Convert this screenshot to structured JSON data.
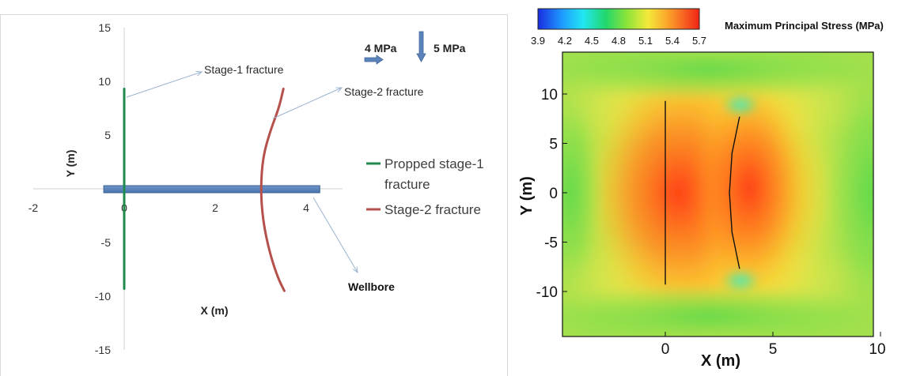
{
  "chart_data": [
    {
      "type": "line",
      "title": "",
      "xlabel": "X (m)",
      "ylabel": "Y (m)",
      "xlim": [
        -2,
        4.8
      ],
      "ylim": [
        -15,
        15
      ],
      "x_ticks": [
        "-2",
        "0",
        "2",
        "4"
      ],
      "y_ticks": [
        "15",
        "10",
        "5",
        "0",
        "-5",
        "-10",
        "-15"
      ],
      "grid": false,
      "legend": "right",
      "series": [
        {
          "name": "Propped stage-1 fracture",
          "color": "#1e8b4c",
          "points": [
            [
              0,
              9.3
            ],
            [
              0,
              -9.3
            ]
          ]
        },
        {
          "name": "Stage-2 fracture",
          "color": "#b5504c",
          "points": [
            [
              3.5,
              9.3
            ],
            [
              3.4,
              7.5
            ],
            [
              3.22,
              5.5
            ],
            [
              3.05,
              3.0
            ],
            [
              3.0,
              0.0
            ],
            [
              3.05,
              -3.0
            ],
            [
              3.2,
              -6.0
            ],
            [
              3.38,
              -8.3
            ],
            [
              3.52,
              -9.5
            ]
          ]
        }
      ],
      "wellbore": {
        "x_start": -0.45,
        "x_end": 4.3,
        "y": 0
      },
      "annotations": [
        {
          "text": "Stage-1 fracture",
          "color": "#2b2b2b"
        },
        {
          "text": "Stage-2 fracture",
          "color": "#2b2b2b"
        },
        {
          "text": "Wellbore",
          "color": "#111111",
          "bold": true
        }
      ],
      "stress_labels": [
        {
          "text": "4 MPa",
          "direction": "right"
        },
        {
          "text": "5 MPa",
          "direction": "down"
        }
      ]
    },
    {
      "type": "heatmap",
      "title": "Maximum Principal Stress (MPa)",
      "xlabel": "X (m)",
      "ylabel": "Y (m)",
      "xlim": [
        -4.9,
        10
      ],
      "ylim": [
        -14.5,
        14
      ],
      "x_ticks": [
        "0",
        "5",
        "10"
      ],
      "y_ticks": [
        "10",
        "5",
        "0",
        "-5",
        "-10"
      ],
      "colorbar": {
        "min": 3.9,
        "max": 5.7,
        "ticks": [
          "3.9",
          "4.2",
          "4.5",
          "4.8",
          "5.1",
          "5.4",
          "5.7"
        ]
      },
      "fractures": [
        {
          "points": [
            [
              0,
              9.3
            ],
            [
              0,
              -9.3
            ]
          ]
        },
        {
          "points": [
            [
              3.45,
              7.7
            ],
            [
              3.1,
              4.0
            ],
            [
              2.98,
              0.0
            ],
            [
              3.1,
              -4.0
            ],
            [
              3.45,
              -7.7
            ]
          ]
        }
      ]
    }
  ]
}
